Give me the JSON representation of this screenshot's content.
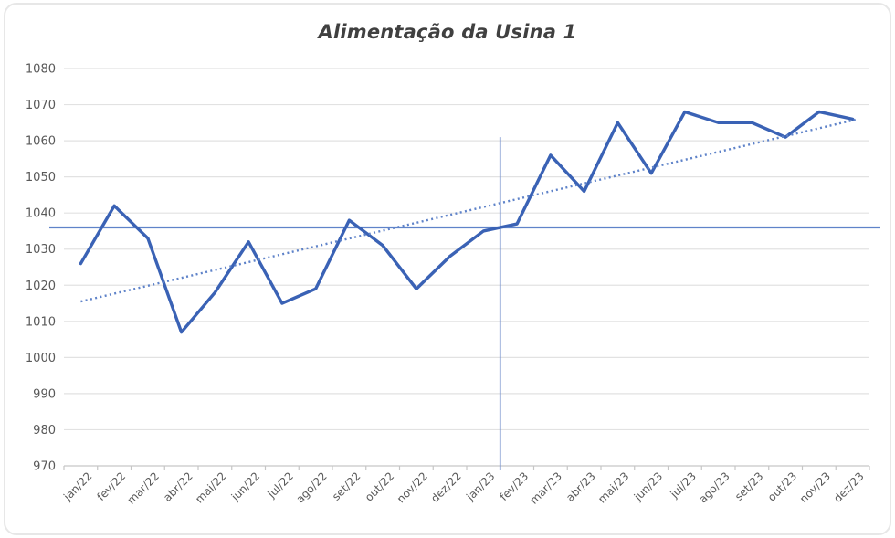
{
  "chart": {
    "title": "Alimentação da Usina 1"
  },
  "chart_data": {
    "type": "line",
    "title": "Alimentação da Usina 1",
    "categories": [
      "jan/22",
      "fev/22",
      "mar/22",
      "abr/22",
      "mai/22",
      "jun/22",
      "jul/22",
      "ago/22",
      "set/22",
      "out/22",
      "nov/22",
      "dez/22",
      "jan/23",
      "fev/23",
      "mar/23",
      "abr/23",
      "mai/23",
      "jun/23",
      "jul/23",
      "ago/23",
      "set/23",
      "out/23",
      "nov/23",
      "dez/23"
    ],
    "series": [
      {
        "name": "Alimentação da Usina 1",
        "type": "line",
        "style": "solid",
        "color": "#3a62b5",
        "values": [
          1026,
          1042,
          1033,
          1007,
          1018,
          1032,
          1015,
          1019,
          1038,
          1031,
          1019,
          1028,
          1035,
          1037,
          1056,
          1046,
          1065,
          1051,
          1068,
          1065,
          1065,
          1061,
          1068,
          1066
        ]
      }
    ],
    "trendline": {
      "style": "dotted",
      "color": "#5f83c9",
      "start_value": 1015.5,
      "end_value": 1066
    },
    "reference_lines": [
      {
        "orientation": "horizontal",
        "value": 1036,
        "color": "#5f83c9"
      },
      {
        "orientation": "vertical",
        "x_between": [
          "jan/23",
          "fev/23"
        ],
        "from_value": 970,
        "to_value": 1061,
        "color": "#7b95cf"
      }
    ],
    "y_axis": {
      "min": 970,
      "max": 1080,
      "tick_step": 10,
      "ticks": [
        1080,
        1070,
        1060,
        1050,
        1040,
        1030,
        1020,
        1010,
        1000,
        990,
        980,
        970
      ]
    },
    "x_axis": {
      "label_rotation_deg": -45
    },
    "grid": true,
    "legend": "none",
    "colors": {
      "gridline": "#e2e2e2",
      "axis": "#c6c6c6",
      "tick_label": "#595959",
      "title": "#404040"
    }
  }
}
